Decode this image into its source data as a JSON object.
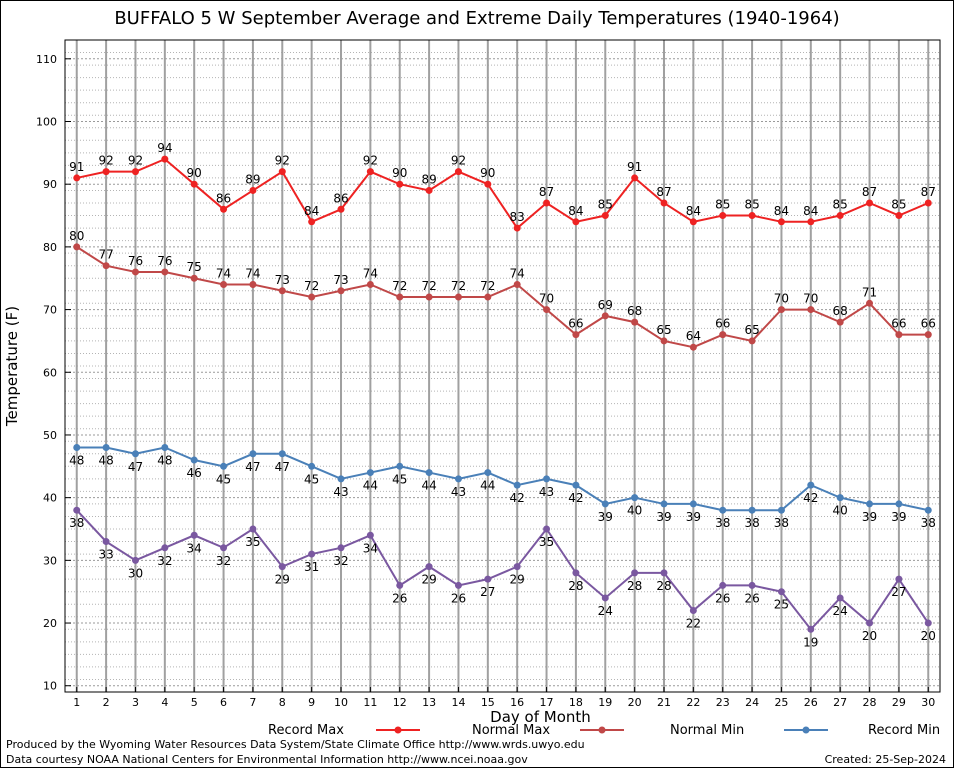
{
  "chart_data": {
    "type": "line",
    "title": "BUFFALO 5 W September Average and Extreme Daily Temperatures (1940-1964)",
    "xlabel": "Day of Month",
    "ylabel": "Temperature (F)",
    "x": [
      1,
      2,
      3,
      4,
      5,
      6,
      7,
      8,
      9,
      10,
      11,
      12,
      13,
      14,
      15,
      16,
      17,
      18,
      19,
      20,
      21,
      22,
      23,
      24,
      25,
      26,
      27,
      28,
      29,
      30
    ],
    "xlim": [
      0.6,
      30.4
    ],
    "ylim": [
      9,
      113
    ],
    "yticks": [
      10,
      20,
      30,
      40,
      50,
      60,
      70,
      80,
      90,
      100,
      110
    ],
    "grid": true,
    "legend_position": "bottom",
    "series": [
      {
        "name": "Record Max",
        "color": "#ee2222",
        "label_pos": "above",
        "values": [
          91,
          92,
          92,
          94,
          90,
          86,
          89,
          92,
          84,
          86,
          92,
          90,
          89,
          92,
          90,
          83,
          87,
          84,
          85,
          91,
          87,
          84,
          85,
          85,
          84,
          84,
          85,
          87,
          85,
          87
        ]
      },
      {
        "name": "Normal Max",
        "color": "#c04848",
        "label_pos": "above",
        "values": [
          80,
          77,
          76,
          76,
          75,
          74,
          74,
          73,
          72,
          73,
          74,
          72,
          72,
          72,
          72,
          74,
          70,
          66,
          69,
          68,
          65,
          64,
          66,
          65,
          70,
          70,
          68,
          71,
          66,
          66
        ]
      },
      {
        "name": "Normal Min",
        "color": "#4a80b8",
        "label_pos": "below",
        "values": [
          48,
          48,
          47,
          48,
          46,
          45,
          47,
          47,
          45,
          43,
          44,
          45,
          44,
          43,
          44,
          42,
          43,
          42,
          39,
          40,
          39,
          39,
          38,
          38,
          38,
          42,
          40,
          39,
          39,
          38
        ]
      },
      {
        "name": "Record Min",
        "color": "#7a58a0",
        "label_pos": "below",
        "values": [
          38,
          33,
          30,
          32,
          34,
          32,
          35,
          29,
          31,
          32,
          34,
          26,
          29,
          26,
          27,
          29,
          35,
          28,
          24,
          28,
          28,
          22,
          26,
          26,
          25,
          19,
          24,
          20,
          27,
          20
        ]
      }
    ]
  },
  "footer": {
    "line1": "Produced by the Wyoming Water Resources Data System/State Climate Office http://www.wrds.uwyo.edu",
    "line2": "Data courtesy NOAA National Centers for Environmental Information http://www.ncei.noaa.gov",
    "created": "Created: 25-Sep-2024"
  }
}
